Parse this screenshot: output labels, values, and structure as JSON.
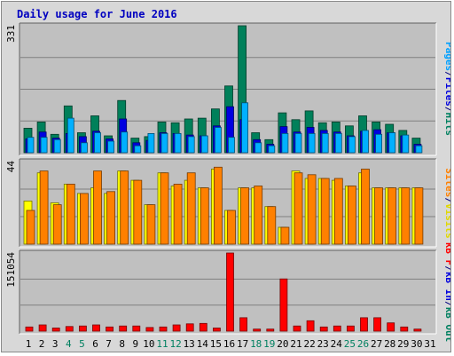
{
  "title": "Daily usage for June 2016",
  "legend": {
    "top": [
      {
        "text": "Pages",
        "color": "#00a0ff"
      },
      {
        "text": "/",
        "color": "#000080"
      },
      {
        "text": "Files",
        "color": "#0000dd"
      },
      {
        "text": "/",
        "color": "#000080"
      },
      {
        "text": "Hits",
        "color": "#008060"
      }
    ],
    "middle": [
      {
        "text": "Sites",
        "color": "#ff8000"
      },
      {
        "text": "/",
        "color": "#000080"
      },
      {
        "text": "Visits",
        "color": "#e0d800"
      }
    ],
    "bottom": [
      {
        "text": "kB F",
        "color": "#ff0000"
      },
      {
        "text": "/",
        "color": "#000080"
      },
      {
        "text": "kB In",
        "color": "#0000dd"
      },
      {
        "text": "/",
        "color": "#000080"
      },
      {
        "text": "kB Out",
        "color": "#008060"
      }
    ]
  },
  "colors": {
    "hits": "#00805a",
    "files": "#0000e0",
    "pages": "#00b0ff",
    "visits": "#ffff00",
    "sites": "#ff8000",
    "kbf": "#ff0000",
    "weekday_label": "#000000",
    "weekend_label": "#008060",
    "plot_bg": "#c0c0c0"
  },
  "chart_data": [
    {
      "type": "bar",
      "panel": "requests",
      "scale_max_label": "331",
      "ylim": [
        0,
        331
      ],
      "x": [
        1,
        2,
        3,
        4,
        5,
        6,
        7,
        8,
        9,
        10,
        11,
        12,
        13,
        14,
        15,
        16,
        17,
        18,
        19,
        20,
        21,
        22,
        23,
        24,
        25,
        26,
        27,
        28,
        29,
        30,
        31
      ],
      "series": [
        {
          "name": "Hits",
          "values": [
            64,
            80,
            48,
            122,
            52,
            96,
            44,
            136,
            38,
            42,
            80,
            78,
            88,
            90,
            114,
            174,
            331,
            52,
            34,
            104,
            86,
            109,
            78,
            80,
            70,
            96,
            80,
            74,
            58,
            38,
            0
          ]
        },
        {
          "name": "Files",
          "values": [
            36,
            54,
            38,
            50,
            42,
            56,
            36,
            88,
            26,
            32,
            52,
            50,
            46,
            44,
            70,
            120,
            86,
            34,
            22,
            68,
            54,
            66,
            58,
            54,
            44,
            56,
            60,
            52,
            44,
            22,
            0
          ]
        },
        {
          "name": "Pages",
          "values": [
            40,
            40,
            34,
            90,
            26,
            52,
            30,
            54,
            18,
            50,
            50,
            50,
            42,
            44,
            66,
            40,
            130,
            26,
            18,
            50,
            50,
            50,
            50,
            50,
            42,
            58,
            48,
            52,
            46,
            18,
            0
          ]
        }
      ]
    },
    {
      "type": "bar",
      "panel": "visitors",
      "scale_max_label": "44",
      "ylim": [
        0,
        44
      ],
      "x": [
        1,
        2,
        3,
        4,
        5,
        6,
        7,
        8,
        9,
        10,
        11,
        12,
        13,
        14,
        15,
        16,
        17,
        18,
        19,
        20,
        21,
        22,
        23,
        24,
        25,
        26,
        27,
        28,
        29,
        30,
        31
      ],
      "series": [
        {
          "name": "Visits",
          "values": [
            23,
            38,
            22,
            32,
            27,
            30,
            27,
            39,
            34,
            21,
            38,
            31,
            34,
            30,
            40,
            18,
            30,
            30,
            20,
            9,
            39,
            35,
            35,
            34,
            31,
            38,
            30,
            30,
            30,
            30,
            0
          ]
        },
        {
          "name": "Sites",
          "values": [
            18,
            39,
            21,
            32,
            27,
            39,
            28,
            39,
            34,
            21,
            38,
            32,
            38,
            30,
            41,
            18,
            30,
            31,
            20,
            9,
            38,
            37,
            35,
            35,
            31,
            40,
            30,
            30,
            30,
            30,
            0
          ]
        }
      ]
    },
    {
      "type": "bar",
      "panel": "kbytes",
      "scale_max_label": "151054",
      "ylim": [
        0,
        151054
      ],
      "x": [
        1,
        2,
        3,
        4,
        5,
        6,
        7,
        8,
        9,
        10,
        11,
        12,
        13,
        14,
        15,
        16,
        17,
        18,
        19,
        20,
        21,
        22,
        23,
        24,
        25,
        26,
        27,
        28,
        29,
        30,
        31
      ],
      "series": [
        {
          "name": "kB F",
          "values": [
            8000,
            12000,
            6000,
            9000,
            10000,
            12000,
            8000,
            10000,
            10000,
            7000,
            8000,
            12000,
            14000,
            15000,
            6000,
            151054,
            26000,
            4000,
            4000,
            101000,
            10000,
            20000,
            8000,
            10000,
            10000,
            26000,
            26000,
            16000,
            8000,
            4000,
            0
          ]
        }
      ]
    }
  ]
}
